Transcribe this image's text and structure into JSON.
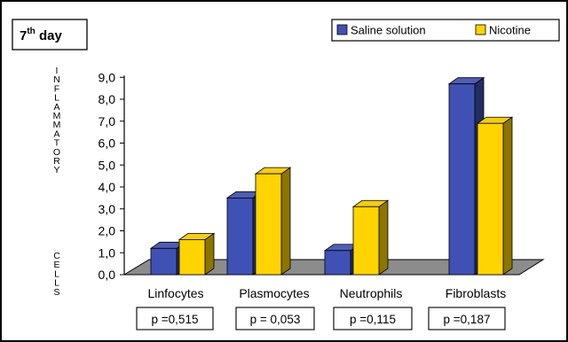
{
  "chart_data": {
    "type": "bar",
    "title": "7th day",
    "title_main": "7",
    "title_sup": "th",
    "title_rest": " day",
    "ylabel": "INFLAMMATORY CELLS",
    "ylabel_top": "INFLAMMATORY",
    "ylabel_bottom": "CELLS",
    "ylim": [
      0,
      9
    ],
    "yticks": [
      "0,0",
      "1,0",
      "2,0",
      "3,0",
      "4,0",
      "5,0",
      "6,0",
      "7,0",
      "8,0",
      "9,0"
    ],
    "categories": [
      "Linfocytes",
      "Plasmocytes",
      "Neutrophils",
      "Fibroblasts"
    ],
    "series": [
      {
        "name": "Saline solution",
        "color": "#3f51b5",
        "values": [
          1.2,
          3.5,
          1.1,
          8.7
        ]
      },
      {
        "name": "Nicotine",
        "color": "#ffd400",
        "values": [
          1.6,
          4.6,
          3.1,
          6.9
        ]
      }
    ],
    "annotations": [
      "p =0,515",
      "p = 0,053",
      "p =0,115",
      "p =0,187"
    ],
    "legend_position": "top-right",
    "grid": false
  }
}
